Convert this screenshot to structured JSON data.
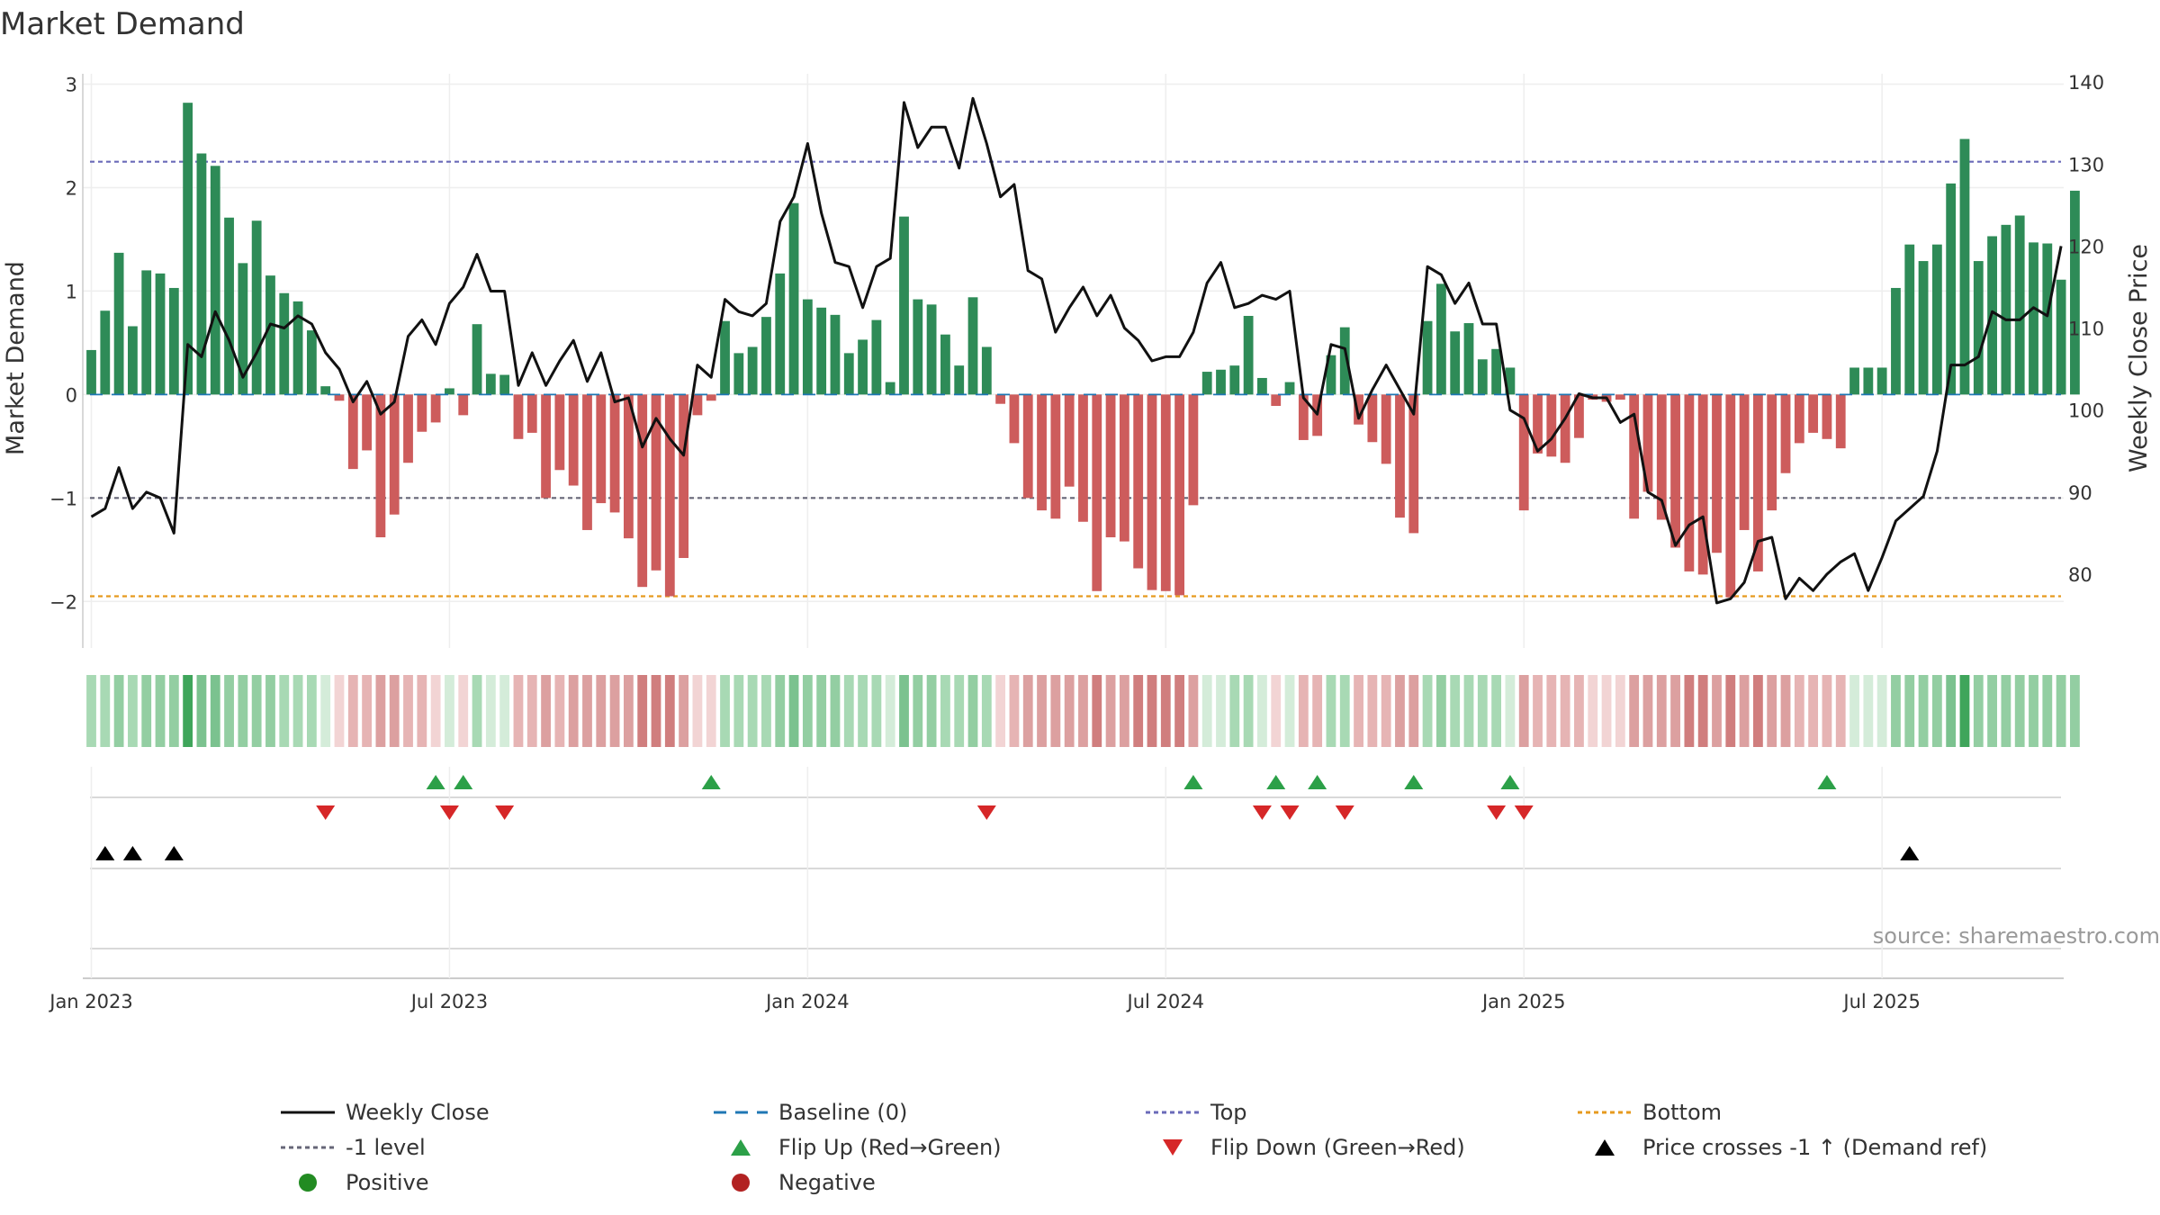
{
  "chart_data": {
    "type": "bar",
    "title": "Market Demand",
    "ylabel": "Market Demand",
    "y2label": "Weekly Close Price",
    "ylim": [
      -2.45,
      3.1
    ],
    "y_ticks": [
      3,
      2,
      1,
      0,
      -1,
      -2
    ],
    "y_tick_labels": [
      "3",
      "2",
      "1",
      "0",
      "−1",
      "−2"
    ],
    "y2lim": [
      71,
      141
    ],
    "y2_ticks": [
      140,
      130,
      120,
      110,
      100,
      90,
      80
    ],
    "y2_tick_labels": [
      "140",
      "130",
      "120",
      "110",
      "100",
      "90",
      "80"
    ],
    "x_ticks": [
      {
        "label": "Jan 2023",
        "week": 0
      },
      {
        "label": "Jul 2023",
        "week": 26
      },
      {
        "label": "Jan 2024",
        "week": 52
      },
      {
        "label": "Jul 2024",
        "week": 78
      },
      {
        "label": "Jan 2025",
        "week": 104
      },
      {
        "label": "Jul 2025",
        "week": 130
      }
    ],
    "reference_lines": {
      "top": 2.25,
      "minus_one": -1,
      "bottom": -1.95,
      "baseline": 0
    },
    "demand": [
      0.43,
      0.81,
      1.37,
      0.66,
      1.2,
      1.17,
      1.03,
      2.82,
      2.33,
      2.21,
      1.71,
      1.27,
      1.68,
      1.15,
      0.98,
      0.9,
      0.62,
      0.08,
      -0.06,
      -0.72,
      -0.54,
      -1.38,
      -1.16,
      -0.66,
      -0.36,
      -0.27,
      0.06,
      -0.2,
      0.68,
      0.2,
      0.19,
      -0.43,
      -0.37,
      -1.0,
      -0.73,
      -0.88,
      -1.31,
      -1.05,
      -1.14,
      -1.39,
      -1.86,
      -1.7,
      -1.95,
      -1.58,
      -0.2,
      -0.06,
      0.71,
      0.4,
      0.46,
      0.75,
      1.17,
      1.85,
      0.92,
      0.84,
      0.77,
      0.4,
      0.53,
      0.72,
      0.12,
      1.72,
      0.92,
      0.87,
      0.58,
      0.28,
      0.94,
      0.46,
      -0.09,
      -0.47,
      -1.0,
      -1.12,
      -1.2,
      -0.89,
      -1.23,
      -1.9,
      -1.38,
      -1.42,
      -1.68,
      -1.89,
      -1.9,
      -1.94,
      -1.07,
      0.22,
      0.24,
      0.28,
      0.76,
      0.16,
      -0.11,
      0.12,
      -0.44,
      -0.4,
      0.38,
      0.65,
      -0.29,
      -0.46,
      -0.67,
      -1.19,
      -1.34,
      0.71,
      1.07,
      0.61,
      0.69,
      0.34,
      0.44,
      0.26,
      -1.12,
      -0.57,
      -0.6,
      -0.66,
      -0.42,
      -0.05,
      -0.07,
      -0.05,
      -1.2,
      -0.94,
      -1.21,
      -1.48,
      -1.71,
      -1.74,
      -1.53,
      -1.96,
      -1.31,
      -1.71,
      -1.12,
      -0.76,
      -0.47,
      -0.37,
      -0.43,
      -0.52,
      0.26,
      0.26,
      0.26,
      1.03,
      1.45,
      1.29,
      1.45,
      2.04,
      2.47,
      1.29,
      1.53,
      1.64,
      1.73,
      1.47,
      1.46,
      1.11,
      1.97
    ],
    "shade_levels": [
      "g1",
      "g1",
      "g2",
      "g1",
      "g2",
      "g2",
      "g2",
      "g4",
      "g3",
      "g3",
      "g2",
      "g2",
      "g2",
      "g2",
      "g1",
      "g1",
      "g1",
      "g0",
      "r0",
      "r1",
      "r1",
      "r2",
      "r2",
      "r1",
      "r1",
      "r0",
      "g0",
      "r0",
      "g1",
      "g0",
      "g0",
      "r1",
      "r1",
      "r2",
      "r1",
      "r2",
      "r2",
      "r2",
      "r2",
      "r2",
      "r3",
      "r3",
      "r3",
      "r2",
      "r0",
      "r0",
      "g1",
      "g1",
      "g1",
      "g1",
      "g2",
      "g3",
      "g2",
      "g2",
      "g2",
      "g1",
      "g1",
      "g1",
      "g0",
      "g3",
      "g2",
      "g2",
      "g1",
      "g1",
      "g2",
      "g1",
      "r0",
      "r1",
      "r2",
      "r2",
      "r2",
      "r2",
      "r2",
      "r3",
      "r2",
      "r2",
      "r3",
      "r3",
      "r3",
      "r3",
      "r2",
      "g0",
      "g0",
      "g1",
      "g1",
      "g0",
      "r0",
      "g0",
      "r1",
      "r1",
      "g1",
      "g1",
      "r1",
      "r1",
      "r1",
      "r2",
      "r2",
      "g1",
      "g2",
      "g1",
      "g1",
      "g1",
      "g1",
      "g0",
      "r2",
      "r1",
      "r1",
      "r1",
      "r1",
      "r0",
      "r0",
      "r0",
      "r2",
      "r2",
      "r2",
      "r2",
      "r3",
      "r3",
      "r2",
      "r3",
      "r2",
      "r3",
      "r2",
      "r2",
      "r1",
      "r1",
      "r1",
      "r1",
      "g0",
      "g0",
      "g0",
      "g2",
      "g2",
      "g2",
      "g2",
      "g3",
      "g4",
      "g2",
      "g2",
      "g2",
      "g2",
      "g2",
      "g2",
      "g2",
      "g2"
    ],
    "price": [
      87,
      88,
      93,
      88,
      90,
      89.3,
      85,
      108,
      106.5,
      112,
      108.5,
      104,
      107,
      110.5,
      110,
      111.5,
      110.5,
      107,
      105,
      101,
      103.5,
      99.5,
      101,
      109,
      111,
      108,
      113,
      115,
      119,
      114.5,
      114.5,
      103,
      107,
      103,
      106,
      108.5,
      103.5,
      107,
      101,
      101.5,
      95.5,
      99,
      96.5,
      94.5,
      105.5,
      104,
      113.5,
      112,
      111.5,
      113,
      123,
      126,
      132.5,
      124,
      118,
      117.5,
      112.5,
      117.5,
      118.5,
      137.5,
      132,
      134.5,
      134.5,
      129.5,
      138,
      132.5,
      126,
      127.5,
      117,
      116,
      109.5,
      112.5,
      115,
      111.5,
      114,
      110,
      108.5,
      106,
      106.5,
      106.5,
      109.5,
      115.5,
      118,
      112.5,
      113,
      114,
      113.5,
      114.5,
      101.5,
      99.5,
      108,
      107.5,
      99,
      102.5,
      105.5,
      102.5,
      99.5,
      117.5,
      116.5,
      113,
      115.5,
      110.5,
      110.5,
      100,
      99,
      95,
      96.5,
      99,
      102,
      101.5,
      101.5,
      98.5,
      99.5,
      90,
      89,
      83.5,
      86,
      87,
      76.5,
      77,
      79,
      84,
      84.5,
      77,
      79.5,
      78,
      80,
      81.5,
      82.5,
      78,
      82,
      86.5,
      88,
      89.5,
      95,
      105.5,
      105.5,
      106.5,
      112,
      111,
      111,
      112.5,
      111.5,
      120
    ],
    "flip_up_weeks": [
      25,
      27,
      45,
      80,
      86,
      89,
      96,
      103,
      126
    ],
    "flip_down_weeks": [
      17,
      26,
      30,
      65,
      85,
      87,
      91,
      102,
      104
    ],
    "price_cross_weeks": [
      1,
      3,
      6,
      132
    ],
    "source": "source: sharemaestro.com",
    "colors": {
      "positive_bar": "#2e8b57",
      "negative_bar": "#cd5c5c",
      "price_line": "#111111",
      "baseline": "#1f77b4",
      "top_line": "#6a6ab8",
      "minus_one_line": "#666677",
      "bottom_line": "#e69a1f",
      "flip_up": "#2ca048",
      "flip_down": "#d62728",
      "cross_marker": "#000000",
      "positive_dot": "#228b22",
      "negative_dot": "#b22222",
      "shades": {
        "g0": "#d4ecd9",
        "g1": "#a8d9b4",
        "g2": "#93cea2",
        "g3": "#7bc28f",
        "g4": "#3fa55b",
        "r0": "#f2d4d4",
        "r1": "#e6b4b4",
        "r2": "#dca0a0",
        "r3": "#d07e7e"
      }
    },
    "legend": [
      {
        "label": "Weekly Close",
        "kind": "line",
        "style": "solid",
        "color_key": "price_line"
      },
      {
        "label": "Baseline (0)",
        "kind": "line",
        "style": "dash",
        "color_key": "baseline"
      },
      {
        "label": "Top",
        "kind": "line",
        "style": "dot",
        "color_key": "top_line"
      },
      {
        "label": "Bottom",
        "kind": "line",
        "style": "dot",
        "color_key": "bottom_line"
      },
      {
        "label": "-1 level",
        "kind": "line",
        "style": "dot",
        "color_key": "minus_one_line"
      },
      {
        "label": "Flip Up (Red→Green)",
        "kind": "tri-up",
        "color_key": "flip_up"
      },
      {
        "label": "Flip Down (Green→Red)",
        "kind": "tri-down",
        "color_key": "flip_down"
      },
      {
        "label": "Price crosses -1 ↑ (Demand ref)",
        "kind": "tri-up",
        "color_key": "cross_marker"
      },
      {
        "label": "Positive",
        "kind": "dot",
        "color_key": "positive_dot"
      },
      {
        "label": "Negative",
        "kind": "dot",
        "color_key": "negative_dot"
      }
    ]
  }
}
